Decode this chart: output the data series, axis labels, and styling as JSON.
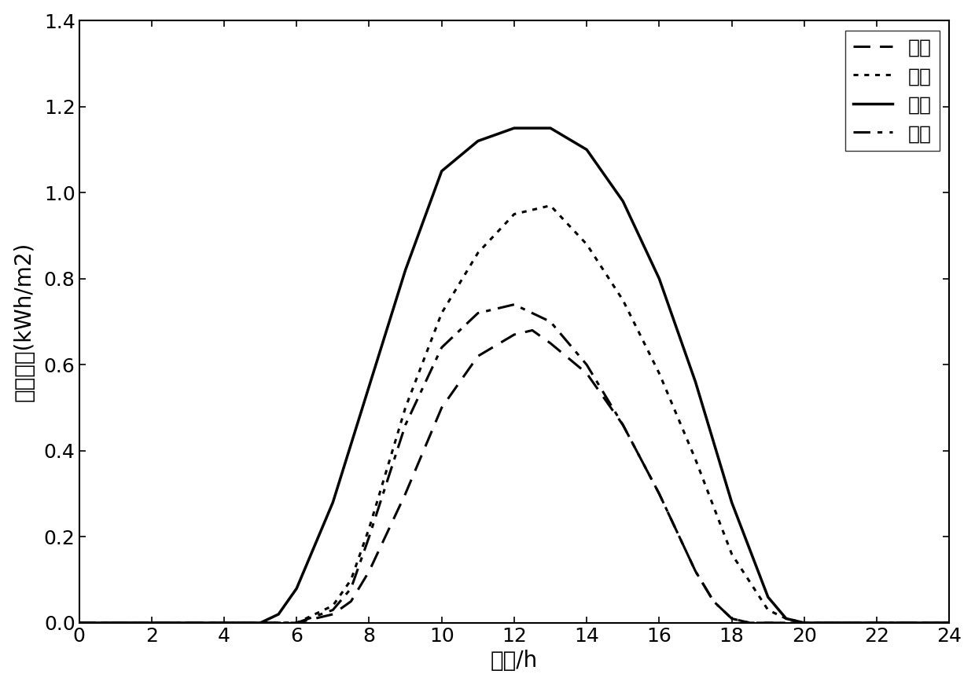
{
  "title": "",
  "xlabel": "时间/h",
  "ylabel": "光照强度(kWh/m2)",
  "xlim": [
    0,
    24
  ],
  "ylim": [
    0,
    1.4
  ],
  "xticks": [
    0,
    2,
    4,
    6,
    8,
    10,
    12,
    14,
    16,
    18,
    20,
    22,
    24
  ],
  "yticks": [
    0,
    0.2,
    0.4,
    0.6,
    0.8,
    1.0,
    1.2,
    1.4
  ],
  "background_color": "#ffffff",
  "series": [
    {
      "label": "一月",
      "linestyle": "dashed",
      "color": "#000000",
      "linewidth": 2.2,
      "x": [
        0,
        5,
        6,
        7,
        7.5,
        8,
        9,
        10,
        11,
        12,
        12.5,
        13,
        14,
        15,
        16,
        17,
        17.5,
        18,
        18.5,
        24
      ],
      "y": [
        0,
        0,
        0,
        0.02,
        0.05,
        0.12,
        0.3,
        0.5,
        0.62,
        0.67,
        0.68,
        0.65,
        0.58,
        0.46,
        0.3,
        0.12,
        0.05,
        0.01,
        0,
        0
      ]
    },
    {
      "label": "四月",
      "linestyle": "dotted",
      "color": "#000000",
      "linewidth": 2.2,
      "x": [
        0,
        5,
        6,
        7,
        7.5,
        8,
        9,
        10,
        11,
        12,
        13,
        14,
        15,
        16,
        17,
        18,
        19,
        19.5,
        20,
        24
      ],
      "y": [
        0,
        0,
        0,
        0.04,
        0.1,
        0.22,
        0.5,
        0.72,
        0.86,
        0.95,
        0.97,
        0.88,
        0.75,
        0.58,
        0.38,
        0.16,
        0.03,
        0.01,
        0,
        0
      ]
    },
    {
      "label": "七月",
      "linestyle": "solid",
      "color": "#000000",
      "linewidth": 2.5,
      "x": [
        0,
        5,
        5.5,
        6,
        7,
        8,
        9,
        10,
        11,
        12,
        13,
        14,
        15,
        16,
        17,
        18,
        19,
        19.5,
        20,
        24
      ],
      "y": [
        0,
        0,
        0.02,
        0.08,
        0.28,
        0.55,
        0.82,
        1.05,
        1.12,
        1.15,
        1.15,
        1.1,
        0.98,
        0.8,
        0.56,
        0.28,
        0.06,
        0.01,
        0,
        0
      ]
    },
    {
      "label": "十月",
      "linestyle": "dashdot",
      "color": "#000000",
      "linewidth": 2.2,
      "x": [
        0,
        6,
        7,
        7.5,
        8,
        9,
        10,
        11,
        12,
        13,
        14,
        15,
        16,
        17,
        17.5,
        18,
        18.5,
        24
      ],
      "y": [
        0,
        0,
        0.03,
        0.08,
        0.2,
        0.46,
        0.64,
        0.72,
        0.74,
        0.7,
        0.6,
        0.46,
        0.3,
        0.12,
        0.05,
        0.01,
        0,
        0
      ]
    }
  ],
  "legend_loc": "upper right",
  "legend_labels": [
    "一月",
    "四月",
    "七月",
    "十月"
  ],
  "font_size": 18,
  "tick_font_size": 18,
  "label_font_size": 20
}
